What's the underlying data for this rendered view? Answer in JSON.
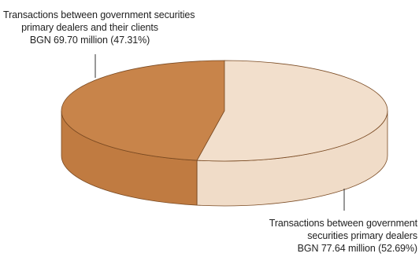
{
  "chart_data": {
    "type": "pie",
    "style": "3d",
    "colors": {
      "clients_top": "#c8844a",
      "clients_side": "#c07b41",
      "dealers_top": "#f2dfcc",
      "dealers_side": "#f0dcc8",
      "edge": "#7a4a22",
      "leader": "#333333"
    },
    "slices": [
      {
        "key": "clients",
        "value": 69.7,
        "percent": 47.31,
        "label_lines": [
          "Transactions between government securities",
          "primary dealers and their clients",
          "BGN 69.70 million (47.31%)"
        ]
      },
      {
        "key": "dealers",
        "value": 77.64,
        "percent": 52.69,
        "label_lines": [
          "Transactions between government",
          "securities primary dealers",
          "BGN 77.64 million (52.69%)"
        ]
      }
    ]
  }
}
